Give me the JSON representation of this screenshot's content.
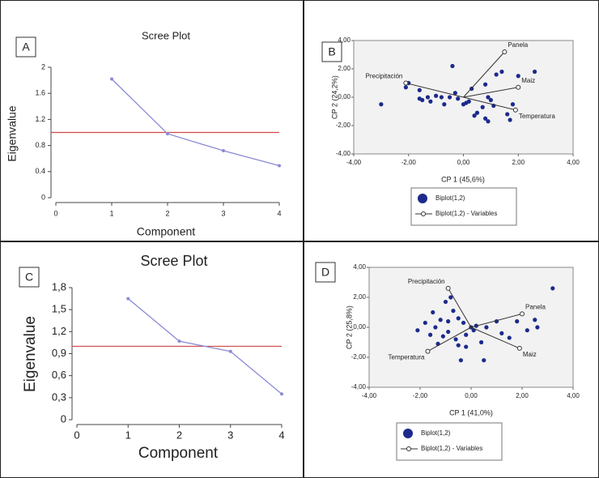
{
  "chart_data": [
    {
      "type": "line",
      "panel_label": "A",
      "title": "Scree Plot",
      "x_label": "Component",
      "y_label": "Eigenvalue",
      "x": [
        1,
        2,
        3,
        4
      ],
      "values": [
        1.82,
        0.98,
        0.72,
        0.49
      ],
      "color": "#8a8ad6",
      "reference_line": 1,
      "reference_color": "#d04848",
      "xlim": [
        0,
        4
      ],
      "xticks": [
        0,
        1,
        2,
        3,
        4
      ],
      "ylim": [
        0,
        2
      ],
      "yticks": [
        0,
        0.4,
        0.8,
        1.2,
        1.6,
        2
      ]
    },
    {
      "type": "biplot",
      "panel_label": "B",
      "x_label": "CP 1 (45,6%)",
      "y_label": "CP 2 (24,2%)",
      "xlim": [
        -4,
        4
      ],
      "xticks": [
        {
          "value": -4,
          "label": "-4,00"
        },
        {
          "value": -2,
          "label": "-2,00"
        },
        {
          "value": 0,
          "label": "0,00"
        },
        {
          "value": 2,
          "label": "2,00"
        },
        {
          "value": 4,
          "label": "4,00"
        }
      ],
      "ylim": [
        -4,
        4
      ],
      "yticks": [
        {
          "value": -4,
          "label": "-4,00"
        },
        {
          "value": -2,
          "label": "-2,00"
        },
        {
          "value": 0,
          "label": "0,00"
        },
        {
          "value": 2,
          "label": "2,00"
        },
        {
          "value": 4,
          "label": "4,00"
        }
      ],
      "series": [
        {
          "name": "Biplot(1,2)",
          "color": "#1c2a8c",
          "x": [
            -3.0,
            -2.1,
            -2.0,
            -1.6,
            -1.5,
            -1.3,
            -1.2,
            -1.0,
            -0.8,
            -0.7,
            -0.5,
            -0.4,
            -0.3,
            -0.2,
            0.0,
            0.1,
            0.2,
            0.3,
            0.4,
            0.5,
            0.7,
            0.8,
            0.9,
            1.0,
            0.8,
            0.9,
            1.1,
            1.2,
            1.4,
            1.6,
            1.7,
            1.8,
            2.0,
            2.6,
            -1.6
          ],
          "y": [
            -0.5,
            0.7,
            1.0,
            0.5,
            -0.2,
            0.0,
            -0.3,
            0.1,
            0.0,
            -0.5,
            0.0,
            2.2,
            0.3,
            -0.1,
            -0.5,
            -0.4,
            -0.3,
            0.6,
            -1.3,
            -1.1,
            -0.7,
            0.9,
            0.0,
            -0.2,
            -1.5,
            -1.7,
            -0.6,
            1.6,
            1.8,
            -1.2,
            -1.6,
            -0.5,
            1.5,
            1.8,
            -0.1
          ]
        },
        {
          "name": "Biplot(1,2) - Variables",
          "color": "#333333",
          "labels": [
            "Panela",
            "Maiz",
            "Temperatura",
            "Precipitación"
          ],
          "x": [
            1.5,
            2.0,
            1.9,
            -2.1
          ],
          "y": [
            3.2,
            0.7,
            -0.9,
            1.0
          ]
        }
      ]
    },
    {
      "type": "line",
      "panel_label": "C",
      "title": "Scree Plot",
      "x_label": "Component",
      "y_label": "Eigenvalue",
      "x": [
        1,
        2,
        3,
        4
      ],
      "values": [
        1.65,
        1.07,
        0.93,
        0.35
      ],
      "color": "#8a8ad6",
      "reference_line": 1,
      "reference_color": "#d04848",
      "xlim": [
        0,
        4
      ],
      "xticks": [
        0,
        1,
        2,
        3,
        4
      ],
      "ylim": [
        0,
        1.8
      ],
      "yticks": [
        0,
        {
          "value": 0.3,
          "label": "0,3"
        },
        {
          "value": 0.6,
          "label": "0,6"
        },
        {
          "value": 0.9,
          "label": "0,9"
        },
        {
          "value": 1.2,
          "label": "1,2"
        },
        {
          "value": 1.5,
          "label": "1,5"
        },
        {
          "value": 1.8,
          "label": "1,8"
        }
      ]
    },
    {
      "type": "biplot",
      "panel_label": "D",
      "x_label": "CP 1 (41,0%)",
      "y_label": "CP 2 (25,8%)",
      "xlim": [
        -4,
        4
      ],
      "xticks": [
        {
          "value": -4,
          "label": "-4,00"
        },
        {
          "value": -2,
          "label": "-2,00"
        },
        {
          "value": 0,
          "label": "0,00"
        },
        {
          "value": 2,
          "label": "2,00"
        },
        {
          "value": 4,
          "label": "4,00"
        }
      ],
      "ylim": [
        -4,
        4
      ],
      "yticks": [
        {
          "value": -4,
          "label": "-4,00"
        },
        {
          "value": -2,
          "label": "-2,00"
        },
        {
          "value": 0,
          "label": "0,00"
        },
        {
          "value": 2,
          "label": "2,00"
        },
        {
          "value": 4,
          "label": "4,00"
        }
      ],
      "series": [
        {
          "name": "Biplot(1,2)",
          "color": "#1c2a8c",
          "x": [
            -2.1,
            -1.8,
            -1.6,
            -1.5,
            -1.4,
            -1.3,
            -1.2,
            -1.1,
            -1.0,
            -0.9,
            -0.9,
            -0.8,
            -0.7,
            -0.6,
            -0.5,
            -0.5,
            -0.4,
            -0.3,
            -0.2,
            0.0,
            0.1,
            0.2,
            0.4,
            0.5,
            0.6,
            1.0,
            1.2,
            1.5,
            1.8,
            2.2,
            2.5,
            2.6,
            3.2,
            -0.2
          ],
          "y": [
            -0.2,
            0.3,
            -0.5,
            1.0,
            0.0,
            -1.1,
            0.5,
            -0.6,
            1.7,
            0.4,
            -0.3,
            2.0,
            1.1,
            -0.8,
            0.6,
            -1.2,
            -2.2,
            0.3,
            -0.5,
            0.0,
            -0.2,
            0.1,
            -1.0,
            -2.2,
            0.0,
            0.4,
            -0.4,
            -0.7,
            0.4,
            -0.2,
            0.5,
            0.0,
            2.6,
            -1.3
          ]
        },
        {
          "name": "Biplot(1,2) - Variables",
          "color": "#333333",
          "labels": [
            "Precipitación",
            "Panela",
            "Maiz",
            "Temperatura"
          ],
          "x": [
            -0.9,
            2.0,
            1.9,
            -1.7
          ],
          "y": [
            2.6,
            0.9,
            -1.4,
            -1.6
          ]
        }
      ]
    }
  ]
}
